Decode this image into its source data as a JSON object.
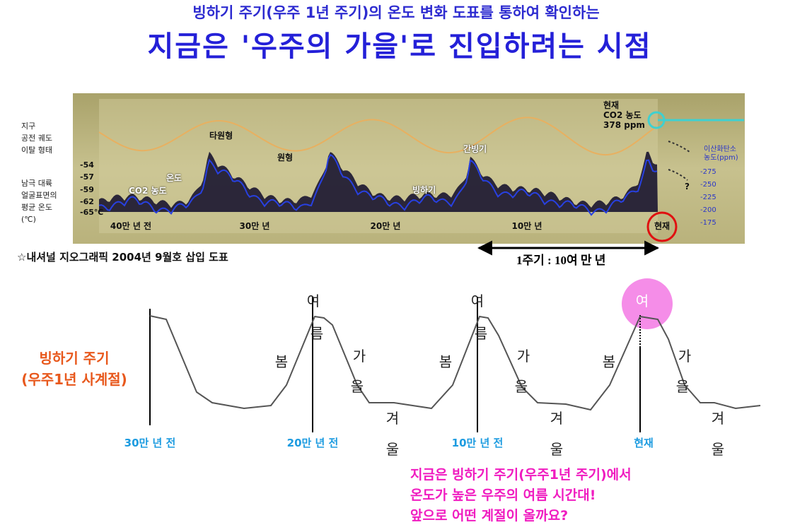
{
  "header": {
    "subtitle": "빙하기 주기(우주 1년 주기)의 온도 변화 도표를 통하여 확인하는",
    "title": "지금은 '우주의 가을'로 진입하려는 시점"
  },
  "figure": {
    "orbit_label": [
      "지구",
      "공전 궤도",
      "이탈 형태"
    ],
    "temp_label": [
      "남극 대륙",
      "얼굴표면의",
      "평균 온도",
      "(℃)"
    ],
    "temp_ticks": [
      "-54",
      "-57",
      "-59",
      "-62",
      "-65℃"
    ],
    "co2_label": [
      "이산화탄소",
      "농도(ppm)"
    ],
    "co2_ticks": [
      "-275",
      "-250",
      "-225",
      "-200",
      "-175"
    ],
    "time_labels": [
      "40만 년 전",
      "30만 년",
      "20만 년",
      "10만 년",
      "현재"
    ],
    "annotations": {
      "ellipse": "타원형",
      "circle": "원형",
      "interglacial": "간빙기",
      "glacial": "빙하기",
      "temperature": "온도",
      "co2": "CO2 농도",
      "question": "?"
    },
    "current": [
      "현재",
      "CO2 농도",
      "378 ppm"
    ]
  },
  "caption": "☆내셔널 지오그래픽 2004년 9월호 삽입 도표",
  "cycle_label": "1주기 : 10여 만 년",
  "cycle": {
    "left_label": [
      "빙하기 주기",
      "(우주1년 사계절)"
    ],
    "periods": [
      "30만 년 전",
      "20만 년 전",
      "10만 년 전",
      "현재"
    ],
    "seasons": [
      [
        "봄",
        "여",
        "름",
        "가",
        "을",
        "겨",
        "울"
      ],
      [
        "봄",
        "여",
        "름",
        "가",
        "을",
        "겨",
        "울"
      ],
      [
        "봄",
        "여",
        "가",
        "을",
        "겨",
        "울"
      ]
    ]
  },
  "message": [
    "지금은 빙하기 주기(우주1년 주기)에서",
    "온도가 높은 우주의 여름 시간대!",
    "앞으로 어떤 계절이 올까요?"
  ]
}
